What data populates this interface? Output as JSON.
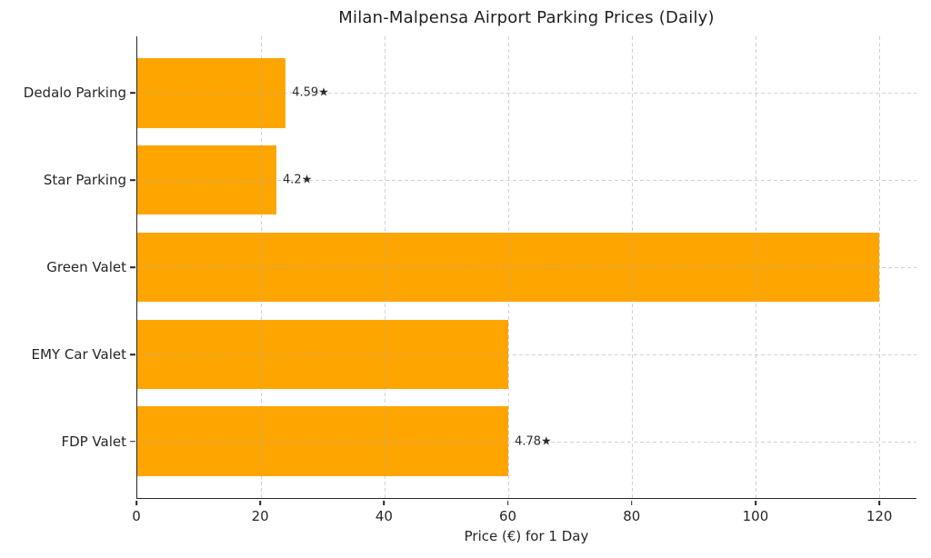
{
  "chart_data": {
    "type": "bar",
    "orientation": "horizontal",
    "title": "Milan-Malpensa Airport Parking Prices (Daily)",
    "xlabel": "Price (€) for 1 Day",
    "ylabel": "",
    "categories": [
      "Dedalo Parking",
      "Star Parking",
      "Green Valet",
      "EMY Car Valet",
      "FDP Valet"
    ],
    "values": [
      24,
      22.5,
      120,
      60,
      60
    ],
    "bar_annotations": [
      "4.59★",
      "4.2★",
      "",
      "",
      "4.78★"
    ],
    "xticks": [
      0,
      20,
      40,
      60,
      80,
      100,
      120
    ],
    "xlim": [
      0,
      126
    ],
    "grid": "dashed",
    "legend_position": "none",
    "spines": [
      "left",
      "bottom"
    ],
    "colors": {
      "bar": "#FFA500",
      "grid": "#c8c8c8",
      "axis": "#262626",
      "text": "#262626",
      "background": "#ffffff"
    }
  }
}
